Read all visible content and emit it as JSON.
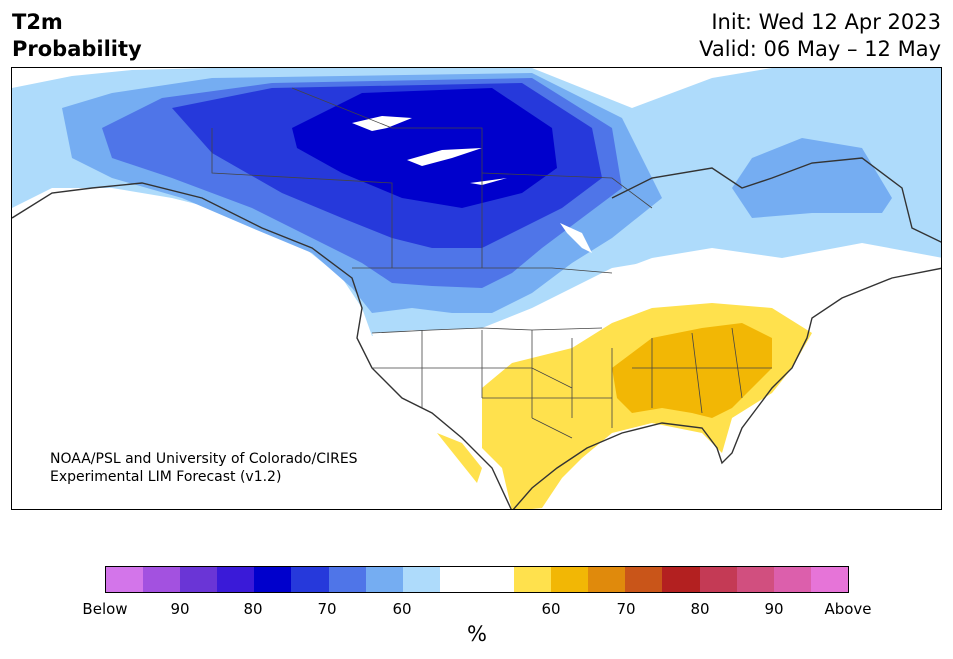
{
  "title": {
    "left_line1": "T2m",
    "left_line2": "Probability",
    "right_line1": "Init: Wed 12 Apr 2023",
    "right_line2": "Valid: 06 May – 12 May"
  },
  "credit": {
    "line1": "NOAA/PSL and University of Colorado/CIRES",
    "line2": "Experimental LIM Forecast (v1.2)"
  },
  "colorbar": {
    "unit": "%",
    "colors": [
      "#d375ea",
      "#a351e0",
      "#6a35d6",
      "#3a1ad8",
      "#0000cc",
      "#2639db",
      "#4f75e8",
      "#75adf2",
      "#aedbfb",
      "#ffffff",
      "#ffffff",
      "#ffe14d",
      "#f2b705",
      "#e08a0c",
      "#c95519",
      "#b32020",
      "#c43a55",
      "#d14f7f",
      "#dc5fac",
      "#e674d8"
    ],
    "ticks": [
      "Below",
      "90",
      "80",
      "70",
      "60",
      "60",
      "70",
      "80",
      "90",
      "Above"
    ]
  },
  "map_colors": {
    "blue_light": "#aedbfb",
    "blue_2": "#75adf2",
    "blue_3": "#4f75e8",
    "blue_4": "#2639db",
    "blue_5": "#0000cc",
    "yellow": "#ffe14d",
    "orange_1": "#f2b705",
    "white": "#ffffff",
    "coast": "#333333"
  }
}
